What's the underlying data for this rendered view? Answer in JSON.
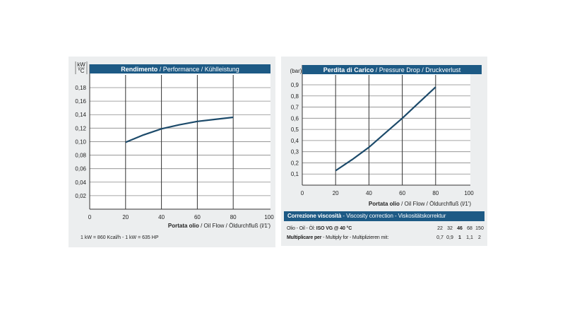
{
  "colors": {
    "header": "#1d5a85",
    "curve": "#1c4a6a",
    "grid": "#333333",
    "panel": "#eceeef"
  },
  "chart_data": [
    {
      "type": "line",
      "title_bold": "Rendimento",
      "title_rest": " / Performance / Kühlleistung",
      "ylabel_top": "kW",
      "ylabel_bottom": "°C",
      "xlabel_bold": "Portata olio",
      "xlabel_rest": " / Oil Flow / Öldurchfluß",
      "xunit": "(l/1')",
      "xlim": [
        0,
        100
      ],
      "ylim": [
        0,
        0.2
      ],
      "xticks": [
        "0",
        "20",
        "40",
        "60",
        "80",
        "100"
      ],
      "yticks": [
        "0,02",
        "0,04",
        "0,06",
        "0,08",
        "0,10",
        "0,12",
        "0,14",
        "0,16",
        "0,18"
      ],
      "x": [
        20,
        30,
        40,
        50,
        60,
        70,
        80
      ],
      "y": [
        0.099,
        0.11,
        0.119,
        0.125,
        0.13,
        0.133,
        0.136
      ],
      "grid": true,
      "note": "1 kW = 860 Kcal/h  - 1 kW = 635 HP"
    },
    {
      "type": "line",
      "title_bold": "Perdita di Carico",
      "title_rest": " / Pressure Drop / Druckverlust",
      "ylabel_top": "(bar)",
      "xlabel_bold": "Portata olio",
      "xlabel_rest": " / Oil Flow  / Öldurchfluß",
      "xunit": "(l/1')",
      "xlim": [
        0,
        100
      ],
      "ylim": [
        0,
        1.0
      ],
      "xticks": [
        "0",
        "20",
        "40",
        "60",
        "80",
        "100"
      ],
      "yticks": [
        "0,1",
        "0,2",
        "0,3",
        "0,4",
        "0,5",
        "0,6",
        "0,7",
        "0,8",
        "0,9"
      ],
      "x": [
        20,
        30,
        40,
        50,
        60,
        70,
        80
      ],
      "y": [
        0.13,
        0.23,
        0.34,
        0.47,
        0.6,
        0.74,
        0.88
      ],
      "grid": true
    }
  ],
  "viscosity": {
    "title_bold": "Correzione viscosità",
    "title_rest": "  -  Viscosity correction  -  Viskositätskorrektur",
    "row1_label": "Olio - Oil - Öl: ",
    "row1_bold": "ISO VG @ 40 °C",
    "row1_values": [
      "22",
      "32",
      "46",
      "68",
      "150"
    ],
    "row2_label": "Multiplicare per",
    "row2_rest": " - Multiply for - Multiplizieren mit:",
    "row2_values": [
      "0,7",
      "0,9",
      "1",
      "1,1",
      "2"
    ]
  }
}
